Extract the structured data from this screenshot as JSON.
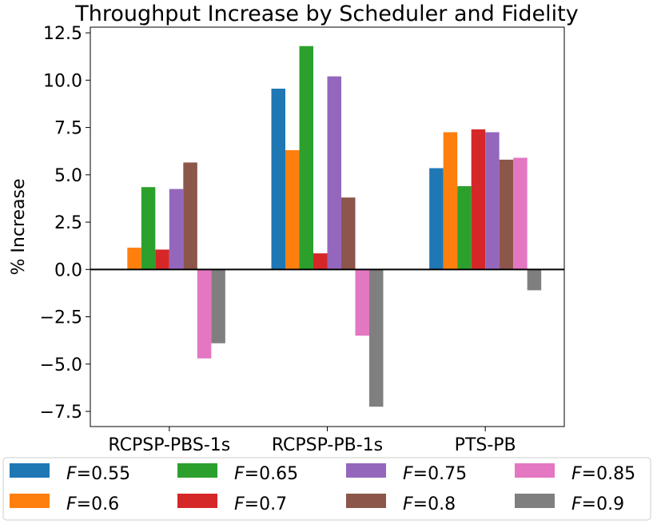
{
  "chart_data": {
    "type": "bar",
    "title": "Throughput Increase by Scheduler and Fidelity",
    "xlabel": "",
    "ylabel": "% Increase",
    "categories": [
      "RCPSP-PBS-1s",
      "RCPSP-PB-1s",
      "PTS-PB"
    ],
    "ylim": [
      -8.3,
      12.8
    ],
    "yticks": [
      -7.5,
      -5.0,
      -2.5,
      0.0,
      2.5,
      5.0,
      7.5,
      10.0,
      12.5
    ],
    "ytick_labels": [
      "−7.5",
      "−5.0",
      "−2.5",
      "0.0",
      "2.5",
      "5.0",
      "7.5",
      "10.0",
      "12.5"
    ],
    "grid": false,
    "zero_line": true,
    "legend_position": "bottom",
    "legend_var": "F",
    "series": [
      {
        "name": "=0.55",
        "color": "#1f77b4",
        "values": [
          0.0,
          9.55,
          5.35
        ]
      },
      {
        "name": "=0.6",
        "color": "#ff7f0e",
        "values": [
          1.15,
          6.3,
          7.25
        ]
      },
      {
        "name": "=0.65",
        "color": "#2ca02c",
        "values": [
          4.35,
          11.8,
          4.4
        ]
      },
      {
        "name": "=0.7",
        "color": "#d62728",
        "values": [
          1.05,
          0.85,
          7.4
        ]
      },
      {
        "name": "=0.75",
        "color": "#9467bd",
        "values": [
          4.25,
          10.2,
          7.25
        ]
      },
      {
        "name": "=0.8",
        "color": "#8c564b",
        "values": [
          5.65,
          3.8,
          5.8
        ]
      },
      {
        "name": "=0.85",
        "color": "#e377c2",
        "values": [
          -4.7,
          -3.5,
          5.9
        ]
      },
      {
        "name": "=0.9",
        "color": "#7f7f7f",
        "values": [
          -3.9,
          -7.25,
          -1.1
        ]
      }
    ]
  }
}
